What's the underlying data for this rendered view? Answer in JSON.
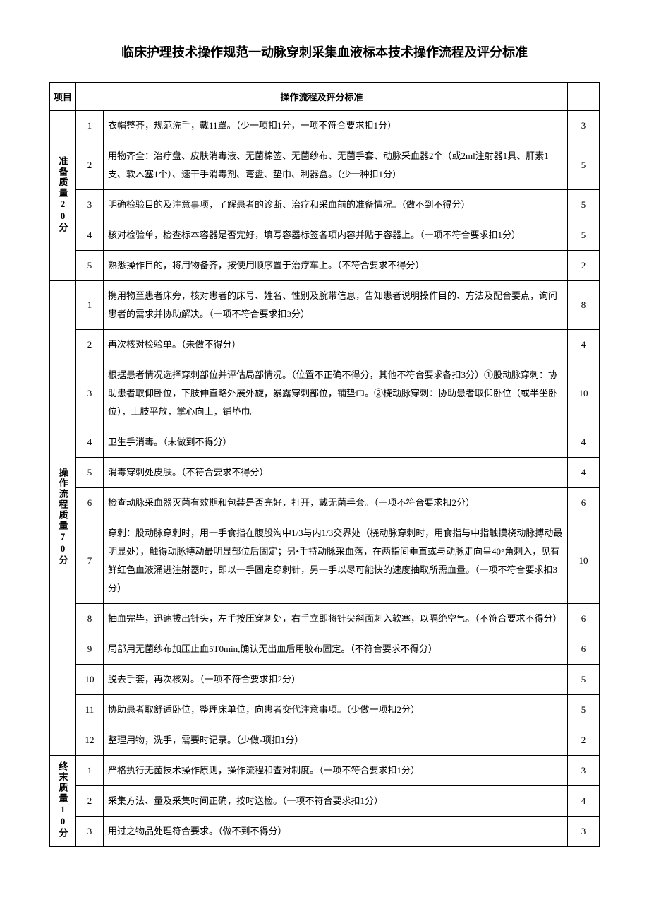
{
  "title": "临床护理技术操作规范一动脉穿刺采集血液标本技术操作流程及评分标准",
  "header": {
    "category": "项目",
    "procedure": "操作流程及评分标准"
  },
  "sections": [
    {
      "label": "准备质量20分",
      "rows": [
        {
          "num": "1",
          "desc": "衣帽整齐，规范洗手，戴11罩。（少一项扣1分，一项不符合要求扣1分）",
          "score": "3"
        },
        {
          "num": "2",
          "desc": "用物齐全：治疗盘、皮肤消毒液、无菌棉签、无菌纱布、无菌手套、动脉采血器2个（或2ml注射器1具、肝素1支、软木塞1个）、速干手消毒剂、弯盘、垫巾、利器盒。（少一种扣1分）",
          "score": "5"
        },
        {
          "num": "3",
          "desc": "明确检验目的及注意事项，了解患者的诊断、治疗和采血前的准备情况。（做不到不得分）",
          "score": "5"
        },
        {
          "num": "4",
          "desc": "核对检验单，检查标本容器是否完好，填写容器标签各项内容并贴于容器上。（一项不符合要求扣1分）",
          "score": "5"
        },
        {
          "num": "5",
          "desc": "熟悉操作目的，将用物备齐，按使用顺序置于治疗车上。（不符合要求不得分）",
          "score": "2"
        }
      ]
    },
    {
      "label": "操作流程质量70分",
      "rows": [
        {
          "num": "1",
          "desc": "携用物至患者床旁，核对患者的床号、姓名、性别及腕带信息，告知患者说明操作目的、方法及配合要点，询问患者的需求并协助解决。（一项不符合要求扣3分）",
          "score": "8"
        },
        {
          "num": "2",
          "desc": "再次核对检验单。（未做不得分）",
          "score": "4"
        },
        {
          "num": "3",
          "desc": "根据患者情况选择穿刺部位并评估局部情况。（位置不正确不得分，其他不符合要求各扣3分）①股动脉穿刺：协助患者取仰卧位，下肢伸直略外展外旋，暴露穿刺部位，铺垫巾。②桡动脉穿刺：协助患者取仰卧位（或半坐卧位），上肢平放，掌心向上，铺垫巾。",
          "score": "10"
        },
        {
          "num": "4",
          "desc": "卫生手消毒。（未做到不得分）",
          "score": "4"
        },
        {
          "num": "5",
          "desc": "消毒穿刺处皮肤。（不符合要求不得分）",
          "score": "4"
        },
        {
          "num": "6",
          "desc": "检查动脉采血器灭菌有效期和包装是否完好，打开，戴无菌手套。（一项不符合要求扣2分）",
          "score": "6"
        },
        {
          "num": "7",
          "desc": "穿刺：股动脉穿刺时，用一手食指在腹股沟中1/3与内1/3交界处（桡动脉穿刺时，用食指与中指触摸桡动脉搏动最明显处），触得动脉搏动最明显部位后固定；另•手持动脉采血落，在两指间垂直或与动脉走向呈40°角刺入，见有鲜红色血液涌进注射器时，即以一手固定穿刺针，另一手以尽可能快的速度抽取所需血量。（一项不符合要求扣3分）",
          "score": "10"
        },
        {
          "num": "8",
          "desc": "抽血完毕，迅速拔出针头，左手按压穿刺处，右手立即将针尖斜面刺入软塞，以隔绝空气。（不符合要求不得分）",
          "score": "6"
        },
        {
          "num": "9",
          "desc": "局部用无菌纱布加压止血5T0min,确认无出血后用胶布固定。（不符合要求不得分）",
          "score": "6"
        },
        {
          "num": "10",
          "desc": "脱去手套，再次核对。（一项不符合要求扣2分）",
          "score": "5"
        },
        {
          "num": "11",
          "desc": "协助患者取舒适卧位，整理床单位，向患者交代注意事项。（少做一项扣2分）",
          "score": "5"
        },
        {
          "num": "12",
          "desc": "整理用物，洗手，需要时记录。（少做-项扣1分）",
          "score": "2"
        }
      ]
    },
    {
      "label": "终末质量10分",
      "rows": [
        {
          "num": "1",
          "desc": "严格执行无菌技术操作原则，操作流程和查对制度。（一项不符合要求扣1分）",
          "score": "3"
        },
        {
          "num": "2",
          "desc": "采集方法、量及采集时间正确，按时送检。（一项不符合要求扣1分）",
          "score": "4"
        },
        {
          "num": "3",
          "desc": "用过之物品处理符合要求。（做不到不得分）",
          "score": "3"
        }
      ]
    }
  ]
}
